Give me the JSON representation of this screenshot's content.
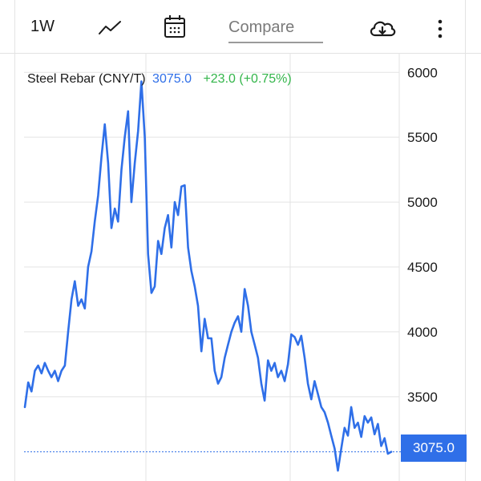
{
  "toolbar": {
    "range_label": "1W",
    "compare_placeholder": "Compare",
    "icons": [
      "line-chart-icon",
      "calendar-icon",
      "cloud-download-icon",
      "more-vertical-icon"
    ]
  },
  "colors": {
    "line": "#2f6fe8",
    "up": "#33b54a",
    "grid": "#e3e3e3",
    "text": "#1a1a1a"
  },
  "chart_data": {
    "type": "line",
    "title": "Steel Rebar (CNY/T)",
    "last_price": "3075.0",
    "change": "+23.0 (+0.75%)",
    "price_tag": "3075.0",
    "ylim": [
      2850,
      6150
    ],
    "yticks": [
      3500,
      4000,
      4500,
      5000,
      5500,
      6000
    ],
    "ytick_labels": [
      "3500",
      "4000",
      "4500",
      "5000",
      "5500",
      "6000"
    ],
    "grid": true,
    "reference_line": 3075,
    "series": [
      {
        "values": [
          3420,
          3610,
          3540,
          3700,
          3740,
          3680,
          3760,
          3700,
          3650,
          3700,
          3620,
          3700,
          3740,
          4000,
          4250,
          4390,
          4200,
          4250,
          4180,
          4500,
          4620,
          4850,
          5050,
          5350,
          5600,
          5300,
          4800,
          4950,
          4850,
          5250,
          5500,
          5700,
          5000,
          5300,
          5550,
          5930,
          5500,
          4600,
          4300,
          4350,
          4700,
          4600,
          4800,
          4900,
          4650,
          5000,
          4900,
          5120,
          5130,
          4650,
          4470,
          4350,
          4200,
          3850,
          4100,
          3950,
          3950,
          3700,
          3600,
          3650,
          3800,
          3900,
          4000,
          4070,
          4120,
          4000,
          4330,
          4200,
          4000,
          3900,
          3800,
          3600,
          3470,
          3780,
          3700,
          3760,
          3650,
          3700,
          3620,
          3750,
          3980,
          3960,
          3900,
          3970,
          3800,
          3600,
          3480,
          3620,
          3520,
          3420,
          3380,
          3300,
          3200,
          3100,
          2930,
          3100,
          3260,
          3200,
          3420,
          3260,
          3300,
          3190,
          3350,
          3300,
          3340,
          3210,
          3290,
          3120,
          3180,
          3060,
          3075
        ]
      }
    ]
  }
}
